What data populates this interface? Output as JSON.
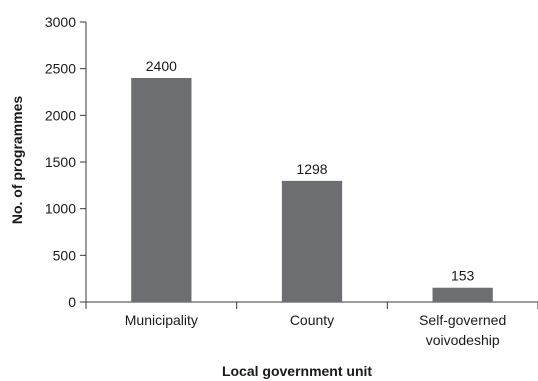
{
  "chart_data": {
    "type": "bar",
    "categories": [
      [
        "Municipality"
      ],
      [
        "County"
      ],
      [
        "Self-governed",
        "voivodeship"
      ]
    ],
    "values": [
      2400,
      1298,
      153
    ],
    "data_labels": [
      "2400",
      "1298",
      "153"
    ],
    "xlabel": "Local government unit",
    "ylabel": "No. of programmes",
    "ylim": [
      0,
      3000
    ],
    "yticks": [
      0,
      500,
      1000,
      1500,
      2000,
      2500,
      3000
    ],
    "grid": false,
    "legend": "none",
    "bar_color": "#6d6e71",
    "axis_color": "#3a3a3a"
  }
}
